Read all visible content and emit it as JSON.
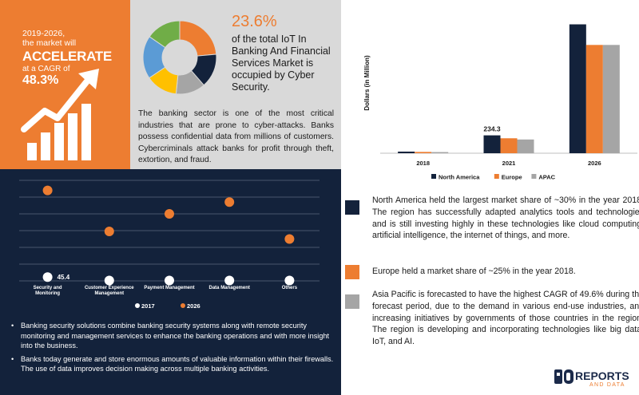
{
  "hero": {
    "period_line1": "2019-2026,",
    "period_line2": "the market will",
    "headline": "ACCELERATE",
    "cagr_label": "at a CAGR of",
    "cagr_value": "48.3%",
    "color": "#ed7d31"
  },
  "info": {
    "share_value": "23.6%",
    "share_text": "of the total IoT In Banking And Financial Services Market is occupied by Cyber Security.",
    "body": "The banking sector is one of the most critical industries that are prone to cyber-attacks. Banks possess confidential data from millions of customers. Cybercriminals attack banks for profit through theft, extortion, and fraud."
  },
  "chart_data": [
    {
      "type": "pie",
      "segments": [
        {
          "value": 23.6,
          "color": "#ed7d31"
        },
        {
          "value": 15,
          "color": "#13223b"
        },
        {
          "value": 13,
          "color": "#a5a5a5"
        },
        {
          "value": 14,
          "color": "#ffc000"
        },
        {
          "value": 19,
          "color": "#5b9bd5"
        },
        {
          "value": 15.4,
          "color": "#70ad47"
        }
      ]
    },
    {
      "type": "bar",
      "categories": [
        "2018",
        "2021",
        "2026"
      ],
      "series": [
        {
          "name": "North America",
          "color": "#13223b",
          "values": [
            21,
            234.3,
            1690
          ]
        },
        {
          "name": "Europe",
          "color": "#ed7d31",
          "values": [
            17,
            196,
            1420
          ]
        },
        {
          "name": "APAC",
          "color": "#a5a5a5",
          "values": [
            15,
            180,
            1420
          ]
        }
      ],
      "data_labels": [
        {
          "series": 0,
          "category": 1,
          "text": "234.3"
        }
      ],
      "ylabel": "Dollars (in Million)",
      "ylim": [
        0,
        1800
      ],
      "grid": false,
      "legend": "bottom"
    },
    {
      "type": "scatter",
      "categories": [
        "Security and Monitoring",
        "Customer Experience Management",
        "Payment Management",
        "Data Management",
        "Others"
      ],
      "series": [
        {
          "name": "2017",
          "color": "#ffffff",
          "values": [
            45.4,
            5,
            5,
            5,
            5
          ]
        },
        {
          "name": "2026",
          "color": "#ed7d31",
          "values": [
            1080,
            590,
            800,
            940,
            500
          ]
        }
      ],
      "data_labels": [
        {
          "series": 0,
          "category": 0,
          "text": "45.4"
        }
      ],
      "ylim": [
        0,
        1200
      ],
      "grid": true,
      "legend": "bottom"
    }
  ],
  "bullets": [
    "Banking security solutions combine banking security systems along with remote security monitoring and management services to enhance the banking operations and with more insight into the business.",
    "Banks today generate and store enormous amounts of valuable information within their firewalls. The use of data improves decision making across multiple banking activities."
  ],
  "notes": [
    {
      "color": "#13223b",
      "text": "North America held the largest market share of ~30% in the year 2018. The region has successfully adapted analytics tools and technologies and is still investing highly in these technologies like cloud computing, artificial intelligence, the internet of things, and more."
    },
    {
      "color": "#ed7d31",
      "text": "Europe held a market share of ~25% in the year 2018."
    },
    {
      "color": "#a5a5a5",
      "text": "Asia Pacific is forecasted to have the highest CAGR of 49.6% during the forecast period, due to the demand in various end-use industries, and increasing initiatives by governments of those countries in the region. The region is developing and incorporating technologies like big data, IoT, and AI."
    }
  ],
  "logo": {
    "brand": "REPORTS",
    "sub": "AND DATA",
    "icon_name": "rd-logo-icon"
  }
}
